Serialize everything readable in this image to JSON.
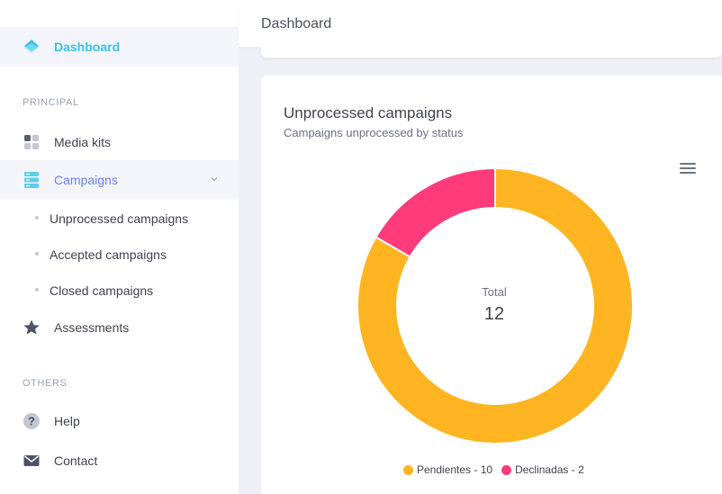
{
  "header": {
    "title": "Dashboard"
  },
  "sidebar": {
    "active_item": {
      "label": "Dashboard",
      "icon": "layers-icon"
    },
    "sections": [
      {
        "title": "PRINCIPAL",
        "items": [
          {
            "label": "Media kits",
            "icon": "grid-icon"
          },
          {
            "label": "Campaigns",
            "icon": "server-icon",
            "expanded": true,
            "children": [
              {
                "label": "Unprocessed campaigns"
              },
              {
                "label": "Accepted campaigns"
              },
              {
                "label": "Closed campaigns"
              }
            ]
          },
          {
            "label": "Assessments",
            "icon": "star-icon"
          }
        ]
      },
      {
        "title": "OTHERS",
        "items": [
          {
            "label": "Help",
            "icon": "help-icon"
          },
          {
            "label": "Contact",
            "icon": "mail-icon"
          }
        ]
      }
    ]
  },
  "card": {
    "title": "Unprocessed campaigns",
    "subtitle": "Campaigns unprocessed by status",
    "total_label": "Total",
    "total_value": "12"
  },
  "chart_data": {
    "type": "pie",
    "variant": "donut",
    "categories": [
      "Pendientes",
      "Declinadas"
    ],
    "values": [
      10,
      2
    ],
    "colors": [
      "#ffb522",
      "#ff3b7b"
    ],
    "legend": [
      {
        "text": "Pendientes - 10"
      },
      {
        "text": "Declinadas - 2"
      }
    ],
    "legend_position": "bottom"
  },
  "colors": {
    "accent_active": "#35c3e8",
    "accent_open": "#6c7ff2"
  }
}
